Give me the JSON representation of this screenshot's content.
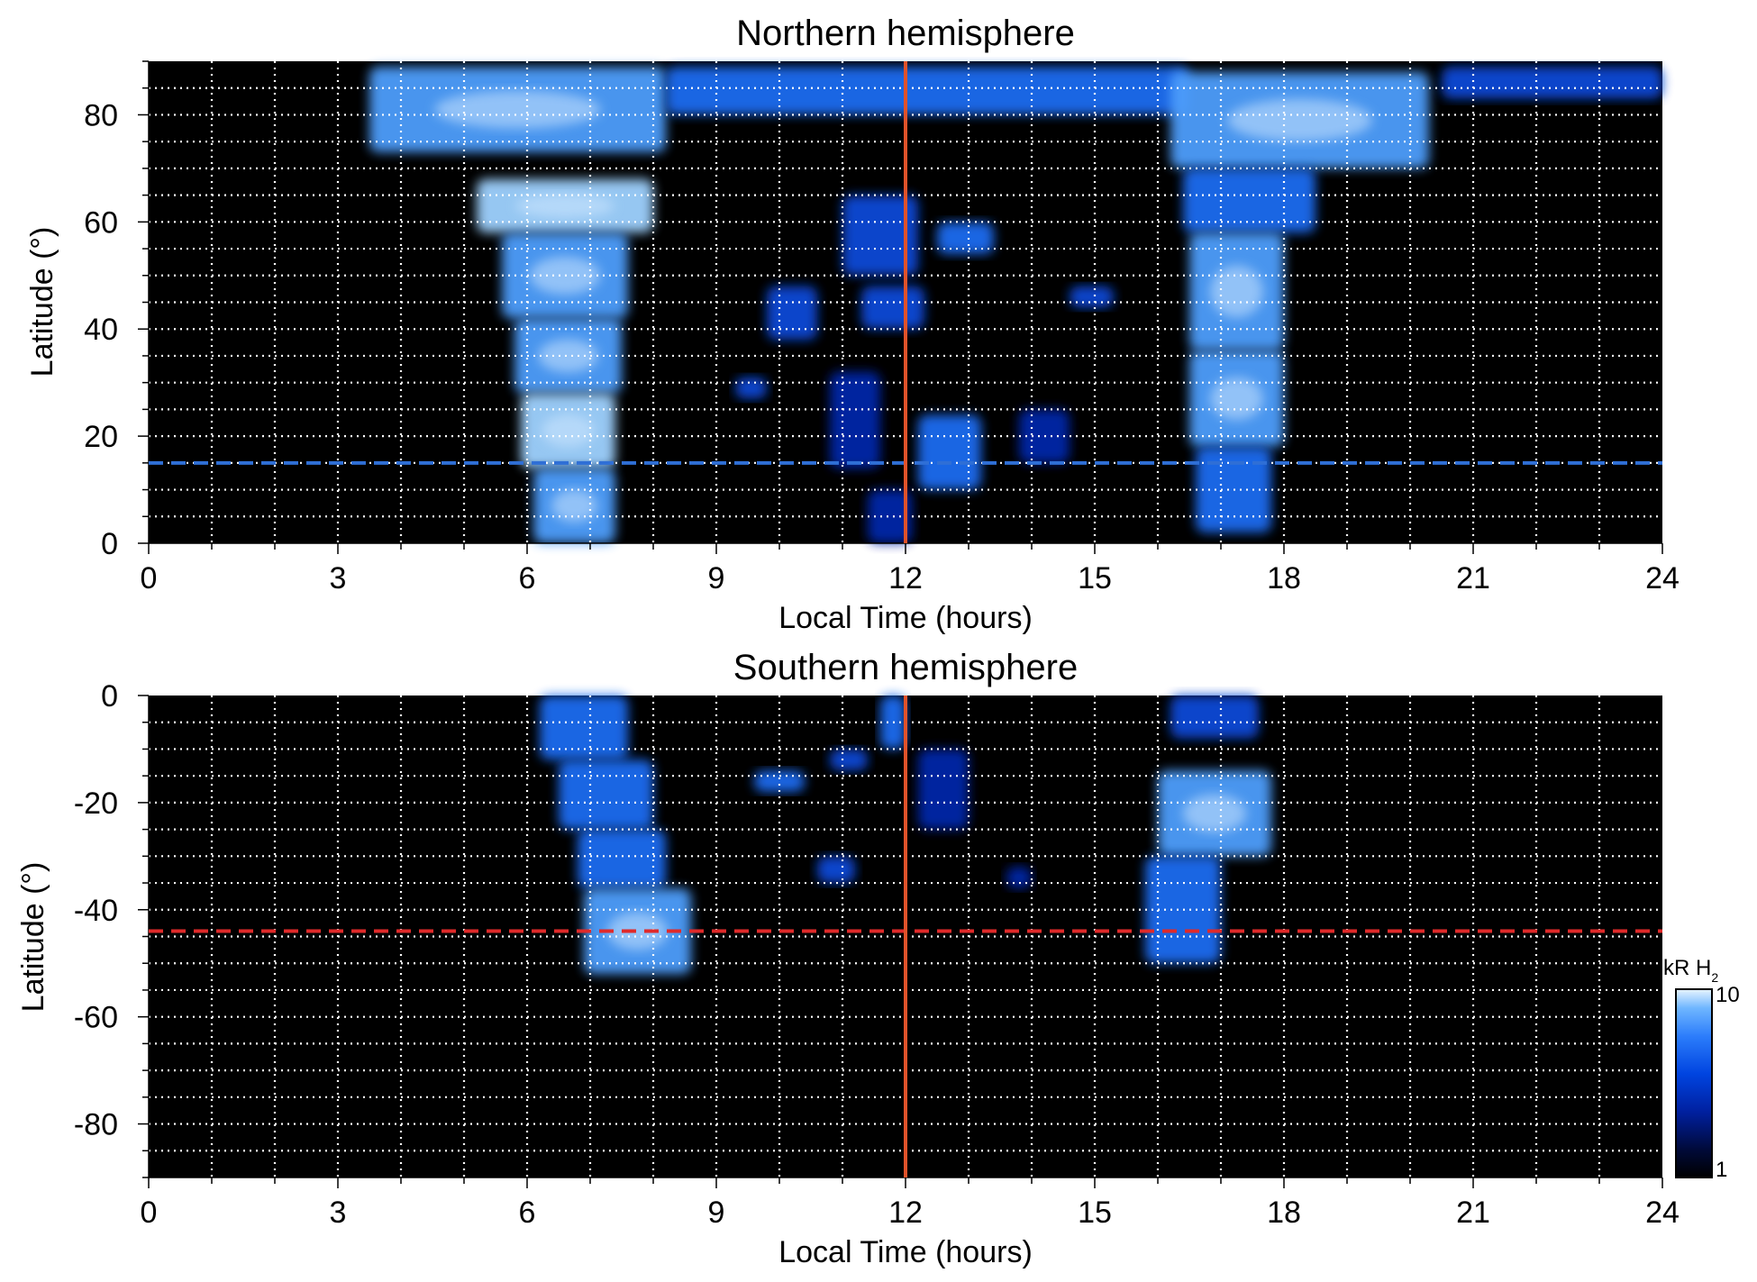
{
  "chart_data": [
    {
      "type": "heatmap",
      "title": "Northern hemisphere",
      "xlabel": "Local Time (hours)",
      "ylabel": "Latitude (°)",
      "xlim": [
        0,
        24
      ],
      "ylim": [
        0,
        90
      ],
      "xticks": [
        0,
        3,
        6,
        9,
        12,
        15,
        18,
        21,
        24
      ],
      "xtick_labels": [
        "0",
        "3",
        "6",
        "9",
        "12",
        "15",
        "18",
        "21",
        "24"
      ],
      "yticks": [
        0,
        20,
        40,
        60,
        80
      ],
      "ytick_labels": [
        "0",
        "20",
        "40",
        "60",
        "80"
      ],
      "grid": true,
      "background_color": "#000000",
      "vline": {
        "x": 12,
        "color": "#e0522a"
      },
      "hline": {
        "y": 15,
        "color": "#2f6fd6",
        "style": "dashed"
      },
      "blobs": [
        {
          "x0": 3.5,
          "x1": 8.2,
          "y0": 73,
          "y1": 89,
          "i": 0.75
        },
        {
          "x0": 5.2,
          "x1": 8.0,
          "y0": 58,
          "y1": 68,
          "i": 0.85
        },
        {
          "x0": 5.6,
          "x1": 7.6,
          "y0": 42,
          "y1": 58,
          "i": 0.78
        },
        {
          "x0": 5.8,
          "x1": 7.5,
          "y0": 28,
          "y1": 42,
          "i": 0.72
        },
        {
          "x0": 5.9,
          "x1": 7.4,
          "y0": 14,
          "y1": 28,
          "i": 0.85
        },
        {
          "x0": 6.1,
          "x1": 7.4,
          "y0": 0,
          "y1": 14,
          "i": 0.75
        },
        {
          "x0": 8.2,
          "x1": 16.5,
          "y0": 80,
          "y1": 89,
          "i": 0.6
        },
        {
          "x0": 16.2,
          "x1": 20.3,
          "y0": 70,
          "y1": 88,
          "i": 0.8
        },
        {
          "x0": 16.4,
          "x1": 18.5,
          "y0": 58,
          "y1": 70,
          "i": 0.6
        },
        {
          "x0": 16.5,
          "x1": 18.0,
          "y0": 36,
          "y1": 58,
          "i": 0.78
        },
        {
          "x0": 16.5,
          "x1": 18.0,
          "y0": 18,
          "y1": 36,
          "i": 0.8
        },
        {
          "x0": 16.6,
          "x1": 17.8,
          "y0": 2,
          "y1": 18,
          "i": 0.7
        },
        {
          "x0": 20.5,
          "x1": 24.0,
          "y0": 83,
          "y1": 89,
          "i": 0.55
        },
        {
          "x0": 11.0,
          "x1": 12.2,
          "y0": 50,
          "y1": 65,
          "i": 0.55
        },
        {
          "x0": 12.5,
          "x1": 13.4,
          "y0": 54,
          "y1": 60,
          "i": 0.6
        },
        {
          "x0": 9.8,
          "x1": 10.6,
          "y0": 38,
          "y1": 48,
          "i": 0.5
        },
        {
          "x0": 11.3,
          "x1": 12.3,
          "y0": 40,
          "y1": 48,
          "i": 0.5
        },
        {
          "x0": 14.6,
          "x1": 15.3,
          "y0": 44,
          "y1": 48,
          "i": 0.5
        },
        {
          "x0": 9.3,
          "x1": 9.8,
          "y0": 27,
          "y1": 31,
          "i": 0.55
        },
        {
          "x0": 10.8,
          "x1": 11.6,
          "y0": 14,
          "y1": 32,
          "i": 0.45
        },
        {
          "x0": 12.2,
          "x1": 13.2,
          "y0": 10,
          "y1": 24,
          "i": 0.6
        },
        {
          "x0": 13.8,
          "x1": 14.6,
          "y0": 15,
          "y1": 25,
          "i": 0.45
        },
        {
          "x0": 11.4,
          "x1": 12.1,
          "y0": 0,
          "y1": 10,
          "i": 0.4
        }
      ]
    },
    {
      "type": "heatmap",
      "title": "Southern hemisphere",
      "xlabel": "Local Time (hours)",
      "ylabel": "Latitude (°)",
      "xlim": [
        0,
        24
      ],
      "ylim": [
        -90,
        0
      ],
      "xticks": [
        0,
        3,
        6,
        9,
        12,
        15,
        18,
        21,
        24
      ],
      "xtick_labels": [
        "0",
        "3",
        "6",
        "9",
        "12",
        "15",
        "18",
        "21",
        "24"
      ],
      "yticks": [
        0,
        -20,
        -40,
        -60,
        -80
      ],
      "ytick_labels": [
        "0",
        "-20",
        "-40",
        "-60",
        "-80"
      ],
      "grid": true,
      "background_color": "#000000",
      "vline": {
        "x": 12,
        "color": "#e0522a"
      },
      "hline": {
        "y": -44,
        "color": "#e02a2a",
        "style": "dashed"
      },
      "blobs": [
        {
          "x0": 6.2,
          "x1": 7.6,
          "y0": -12,
          "y1": 0,
          "i": 0.6
        },
        {
          "x0": 6.5,
          "x1": 8.0,
          "y0": -25,
          "y1": -12,
          "i": 0.7
        },
        {
          "x0": 6.8,
          "x1": 8.2,
          "y0": -36,
          "y1": -25,
          "i": 0.6
        },
        {
          "x0": 6.9,
          "x1": 8.6,
          "y0": -52,
          "y1": -36,
          "i": 0.75
        },
        {
          "x0": 9.6,
          "x1": 10.4,
          "y0": -18,
          "y1": -14,
          "i": 0.7
        },
        {
          "x0": 10.8,
          "x1": 11.4,
          "y0": -14,
          "y1": -10,
          "i": 0.55
        },
        {
          "x0": 11.6,
          "x1": 12.0,
          "y0": -10,
          "y1": 0,
          "i": 0.65
        },
        {
          "x0": 10.6,
          "x1": 11.2,
          "y0": -35,
          "y1": -30,
          "i": 0.5
        },
        {
          "x0": 12.2,
          "x1": 13.0,
          "y0": -25,
          "y1": -10,
          "i": 0.45
        },
        {
          "x0": 13.6,
          "x1": 14.0,
          "y0": -36,
          "y1": -32,
          "i": 0.45
        },
        {
          "x0": 16.2,
          "x1": 17.6,
          "y0": -8,
          "y1": 0,
          "i": 0.55
        },
        {
          "x0": 16.0,
          "x1": 17.8,
          "y0": -30,
          "y1": -14,
          "i": 0.8
        },
        {
          "x0": 15.8,
          "x1": 17.0,
          "y0": -50,
          "y1": -30,
          "i": 0.65
        }
      ]
    }
  ],
  "colorbar": {
    "label_main": "kR H",
    "label_sub": "2",
    "max_label": "10",
    "min_label": "1",
    "colors": [
      "#000000",
      "#000a3a",
      "#0020a0",
      "#0044e0",
      "#2c7dfb",
      "#6fb6ff",
      "#e8f4ff"
    ]
  }
}
